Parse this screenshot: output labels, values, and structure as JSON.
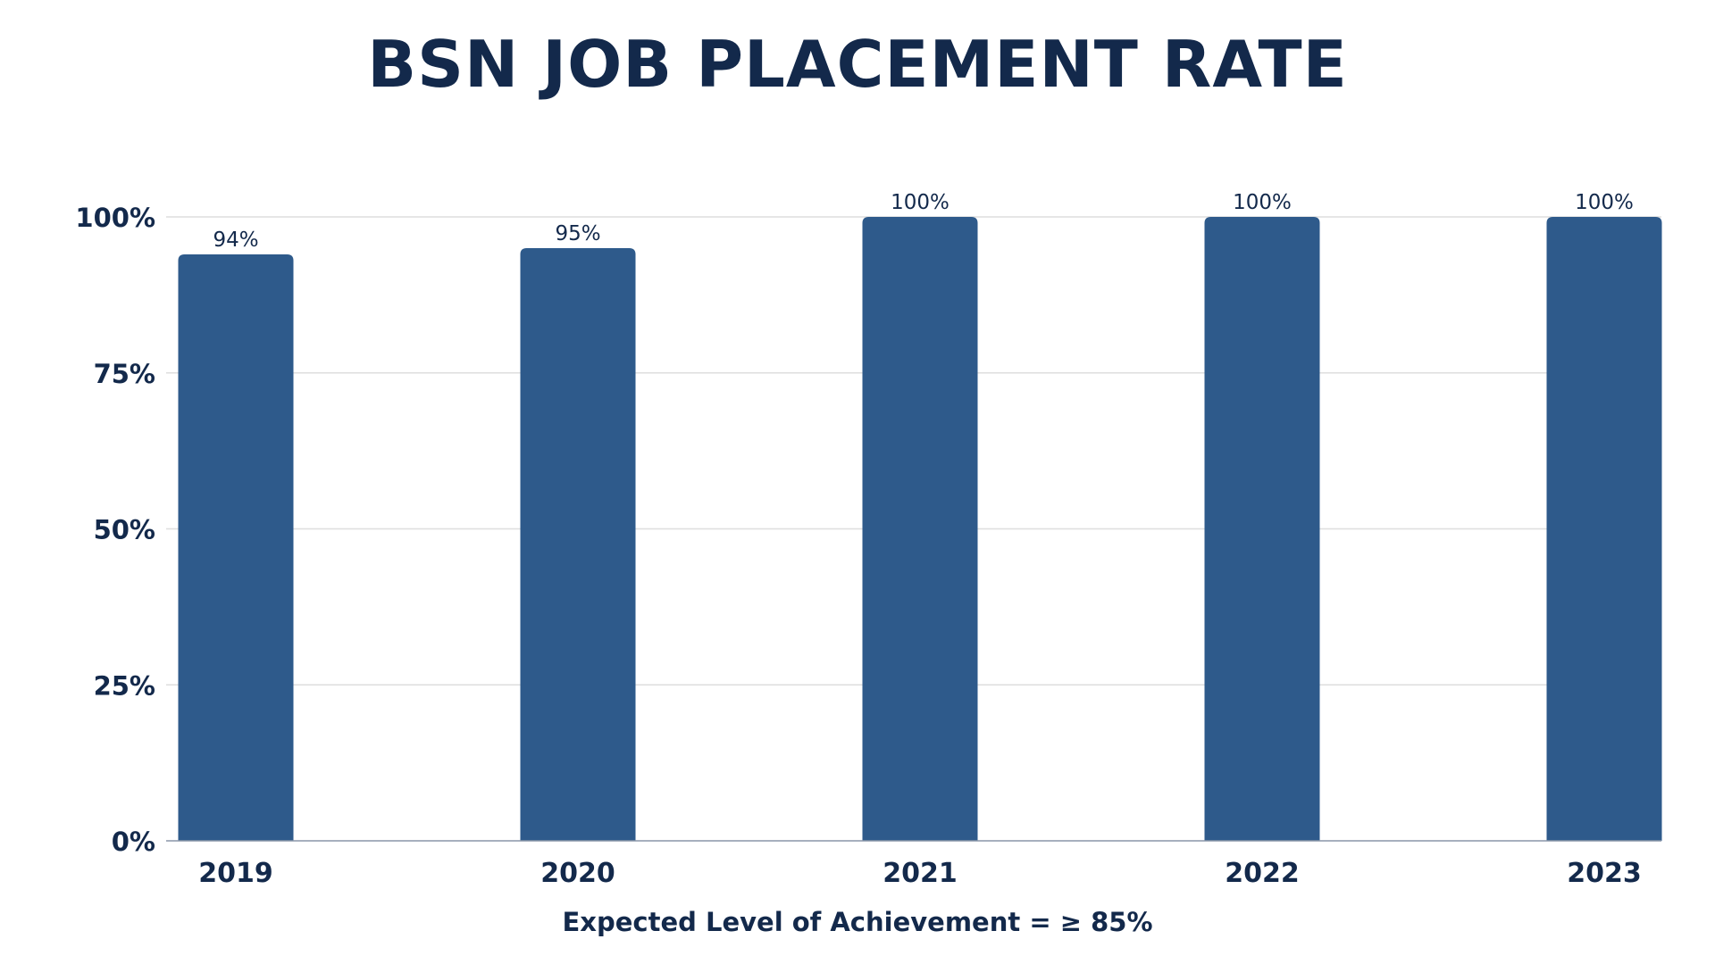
{
  "chart_data": {
    "type": "bar",
    "title": "BSN JOB PLACEMENT RATE",
    "subtitle": "Expected Level of Achievement = ≥ 85%",
    "categories": [
      "2019",
      "2020",
      "2021",
      "2022",
      "2023"
    ],
    "values": [
      94,
      95,
      100,
      100,
      100
    ],
    "value_labels": [
      "94%",
      "95%",
      "100%",
      "100%",
      "100%"
    ],
    "ylim": [
      0,
      100
    ],
    "yticks": [
      0,
      25,
      50,
      75,
      100
    ],
    "ytick_labels": [
      "0%",
      "25%",
      "50%",
      "75%",
      "100%"
    ],
    "grid": true,
    "xlabel": "",
    "ylabel": "",
    "colors": {
      "bar": "#2e5a8b",
      "text": "#13294b",
      "grid": "#dedede",
      "axis": "#8a96a8"
    }
  }
}
